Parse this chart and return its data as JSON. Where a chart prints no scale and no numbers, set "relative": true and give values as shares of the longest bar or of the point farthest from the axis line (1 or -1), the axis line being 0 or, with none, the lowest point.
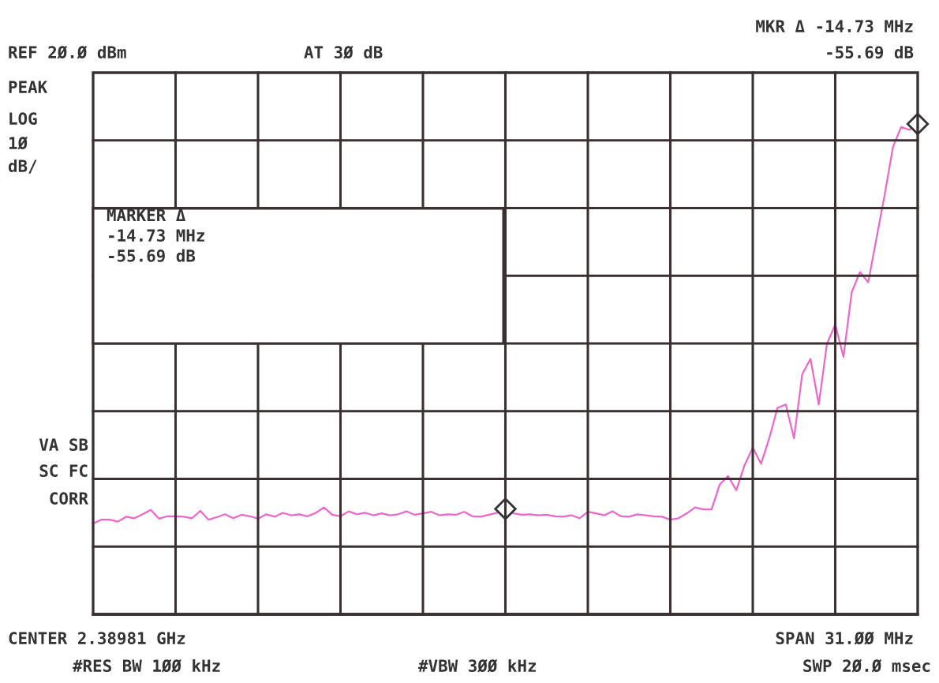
{
  "chart_data": {
    "type": "line",
    "relative": true,
    "grid": true,
    "categories": [
      null,
      null,
      null,
      null,
      null,
      null,
      null,
      null,
      null,
      null,
      null,
      null,
      null,
      null,
      null,
      null,
      null,
      null,
      null,
      null,
      null,
      null,
      null,
      null,
      null,
      null,
      null,
      null,
      null,
      null,
      null,
      null,
      null,
      null,
      null,
      null,
      null,
      null,
      null,
      null,
      null,
      null,
      null,
      null,
      null,
      null,
      null,
      null,
      null,
      null,
      null,
      null,
      null,
      null,
      null,
      null,
      null,
      null,
      null,
      null,
      null,
      null,
      null,
      null,
      null,
      null,
      null,
      null,
      null,
      null,
      null,
      null,
      null,
      null,
      null,
      null,
      null,
      null,
      null,
      null,
      null,
      null,
      null,
      null,
      null,
      null,
      null,
      null,
      null,
      null,
      null,
      null,
      null,
      null,
      null,
      null,
      null,
      null,
      null,
      null,
      null
    ],
    "series": [
      {
        "type": "line",
        "color": "#ee66cc",
        "marker": "none",
        "line_style": "solid",
        "values": [
          0.185,
          0.193,
          0.193,
          0.189,
          0.199,
          0.196,
          0.204,
          0.213,
          0.195,
          0.2,
          0.2,
          0.199,
          0.196,
          0.211,
          0.193,
          0.198,
          0.204,
          0.196,
          0.203,
          0.2,
          0.195,
          0.204,
          0.199,
          0.207,
          0.202,
          0.204,
          0.2,
          0.207,
          0.218,
          0.203,
          0.2,
          0.21,
          0.204,
          0.207,
          0.202,
          0.206,
          0.202,
          0.204,
          0.21,
          0.203,
          0.206,
          0.209,
          0.202,
          0.204,
          0.203,
          0.209,
          0.2,
          0.199,
          0.203,
          0.207,
          0.215,
          0.206,
          0.203,
          0.204,
          0.202,
          0.203,
          0.2,
          0.199,
          0.202,
          0.196,
          0.209,
          0.206,
          0.202,
          0.21,
          0.2,
          0.199,
          0.204,
          0.202,
          0.2,
          0.199,
          0.193,
          0.196,
          0.206,
          0.218,
          0.214,
          0.214,
          0.265,
          0.282,
          0.253,
          0.304,
          0.34,
          0.307,
          0.359,
          0.421,
          0.428,
          0.359,
          0.49,
          0.521,
          0.428,
          0.552,
          0.591,
          0.525,
          0.657,
          0.698,
          0.677,
          0.767,
          0.856,
          0.953,
          0.994,
          0.988,
          1
        ]
      }
    ],
    "annotations": [
      "REF 2Ø.Ø dBm",
      "AT 3Ø dB",
      "MKR Δ -14.73 MHz",
      "-55.69 dB",
      "PEAK",
      "LOG",
      "1Ø",
      "dB/",
      "VA SB",
      "SC FC",
      "CORR",
      "CENTER 2.38981 GHz",
      "SPAN 31.ØØ MHz",
      "#RES BW 1ØØ kHz",
      "#VBW 3ØØ kHz",
      "SWP 2Ø.Ø msec",
      "MARKER Δ\n-14.73 MHz\n-55.69 dB"
    ]
  }
}
